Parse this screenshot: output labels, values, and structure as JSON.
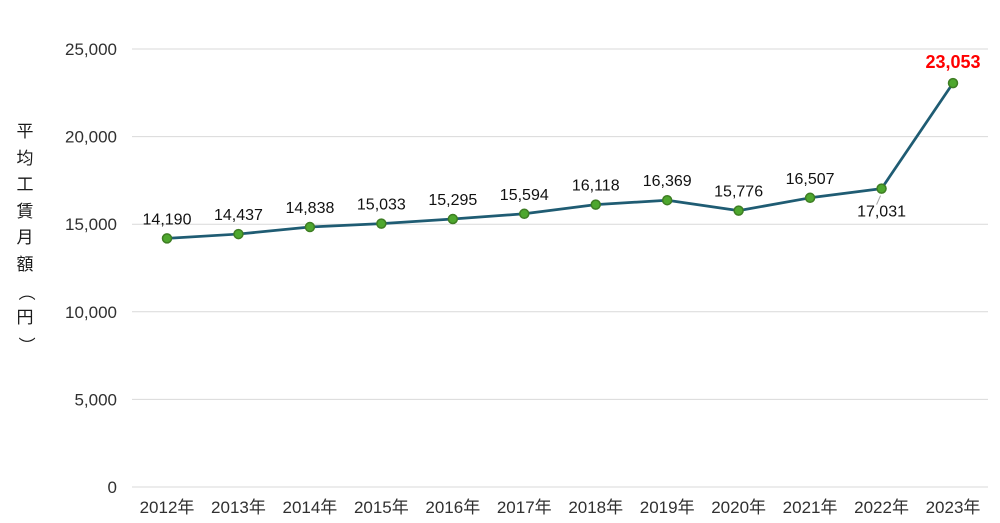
{
  "chart_data": {
    "type": "line",
    "categories": [
      "2012年",
      "2013年",
      "2014年",
      "2015年",
      "2016年",
      "2017年",
      "2018年",
      "2019年",
      "2020年",
      "2021年",
      "2022年",
      "2023年"
    ],
    "series": [
      {
        "name": "平均工賃月額",
        "values": [
          14190,
          14437,
          14838,
          15033,
          15295,
          15594,
          16118,
          16369,
          15776,
          16507,
          17031,
          23053
        ],
        "labels": [
          "14,190",
          "14,437",
          "14,838",
          "15,033",
          "15,295",
          "15,594",
          "16,118",
          "16,369",
          "15,776",
          "16,507",
          "17,031",
          "23,053"
        ]
      }
    ],
    "title": "",
    "xlabel": "",
    "ylabel": "平均工賃月額（円）",
    "ylim": [
      0,
      25000
    ],
    "yticks": [
      0,
      5000,
      10000,
      15000,
      20000,
      25000
    ],
    "ytick_labels": [
      "0",
      "5,000",
      "10,000",
      "15,000",
      "20,000",
      "25,000"
    ],
    "grid": true,
    "legend_position": "none",
    "line_color": "#1F5C73",
    "marker_color": "#4EA72E",
    "marker_edge_color": "#3E7D23",
    "gridline_color": "#D9D9D9",
    "tick_color": "#303030",
    "data_label_color": "#111111",
    "highlight_color": "#FF0000",
    "highlight_index": 11,
    "below_label_index": 10
  }
}
